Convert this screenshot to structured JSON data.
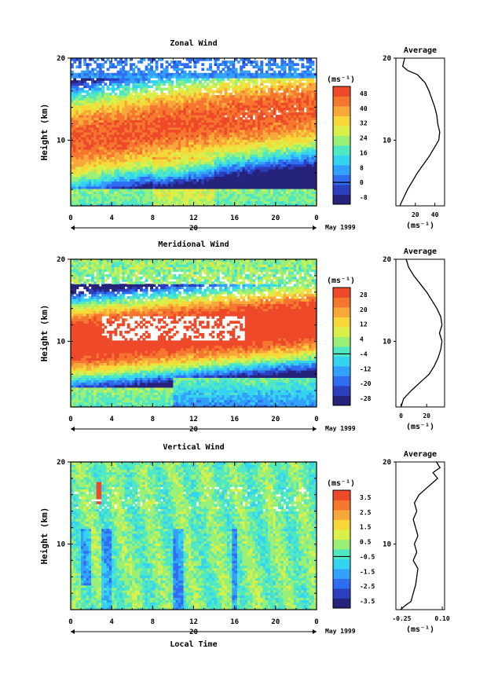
{
  "xaxis": {
    "ticks": [
      "0",
      "4",
      "8",
      "12",
      "16",
      "20",
      "0"
    ],
    "day_label": "20",
    "date_label": "May 1999",
    "label": "Local Time"
  },
  "ylabel": "Height (km)",
  "unit": "(ms⁻¹)",
  "avg_title": "Average",
  "colors": [
    "#26237a",
    "#2b3fbf",
    "#2f6df2",
    "#33a1fb",
    "#35d3f2",
    "#4fe8c2",
    "#9af076",
    "#d9f04a",
    "#f7d838",
    "#f8a83a",
    "#f5762f",
    "#ee4a2a"
  ],
  "chart_data": [
    {
      "type": "heatmap",
      "title": "Zonal Wind",
      "xlim": [
        0,
        24
      ],
      "ylim": [
        2,
        20
      ],
      "xticks": [
        0,
        4,
        8,
        12,
        16,
        20,
        24
      ],
      "yticks": [
        20,
        10
      ],
      "colorbar": {
        "levels": [
          "48",
          "40",
          "32",
          "24",
          "16",
          "8",
          "0",
          "-8"
        ],
        "zero_index": 6,
        "vmin": -8,
        "vmax": 48
      },
      "average": {
        "title": "Average",
        "xticks": [
          "20",
          "40"
        ],
        "xtick_values": [
          20,
          40
        ],
        "xlim": [
          0,
          50
        ],
        "yticks": [
          "20",
          "10"
        ],
        "profile": [
          [
            4,
            2
          ],
          [
            8,
            3
          ],
          [
            12,
            4
          ],
          [
            17,
            5
          ],
          [
            22,
            6
          ],
          [
            28,
            7
          ],
          [
            34,
            8
          ],
          [
            39,
            9
          ],
          [
            44,
            10
          ],
          [
            45,
            11
          ],
          [
            43,
            12
          ],
          [
            42,
            13
          ],
          [
            40,
            14
          ],
          [
            37,
            15
          ],
          [
            34,
            16
          ],
          [
            30,
            17
          ],
          [
            22,
            18
          ],
          [
            12,
            18.5
          ],
          [
            7,
            19
          ],
          [
            8,
            19.5
          ],
          [
            9,
            20
          ]
        ]
      }
    },
    {
      "type": "heatmap",
      "title": "Meridional Wind",
      "xlim": [
        0,
        24
      ],
      "ylim": [
        2,
        20
      ],
      "xticks": [
        0,
        4,
        8,
        12,
        16,
        20,
        24
      ],
      "yticks": [
        20,
        10
      ],
      "colorbar": {
        "levels": [
          "28",
          "20",
          "12",
          "4",
          "-4",
          "-12",
          "-20",
          "-28"
        ],
        "zero_index": 4,
        "vmin": -28,
        "vmax": 28
      },
      "average": {
        "title": "Average",
        "xticks": [
          "0",
          "20"
        ],
        "xtick_values": [
          0,
          20
        ],
        "xlim": [
          -4,
          34
        ],
        "yticks": [
          "20",
          "10"
        ],
        "profile": [
          [
            0,
            2
          ],
          [
            2,
            3
          ],
          [
            8,
            4
          ],
          [
            15,
            5
          ],
          [
            22,
            6
          ],
          [
            26,
            7
          ],
          [
            29,
            8
          ],
          [
            31,
            9
          ],
          [
            32,
            10
          ],
          [
            30,
            11
          ],
          [
            32,
            12
          ],
          [
            31,
            13
          ],
          [
            28,
            14
          ],
          [
            24,
            15
          ],
          [
            20,
            16
          ],
          [
            15,
            17
          ],
          [
            10,
            18
          ],
          [
            6,
            19
          ],
          [
            4,
            20
          ]
        ]
      }
    },
    {
      "type": "heatmap",
      "title": "Vertical Wind",
      "xlim": [
        0,
        24
      ],
      "ylim": [
        2,
        20
      ],
      "xticks": [
        0,
        4,
        8,
        12,
        16,
        20,
        24
      ],
      "yticks": [
        20,
        10
      ],
      "colorbar": {
        "levels": [
          "3.5",
          "2.5",
          "1.5",
          "0.5",
          "-0.5",
          "-1.5",
          "-2.5",
          "-3.5"
        ],
        "zero_index": 4,
        "vmin": -4,
        "vmax": 4
      },
      "average": {
        "title": "Average",
        "xticks": [
          "-0.25",
          "0.10"
        ],
        "xtick_values": [
          -0.25,
          0.1
        ],
        "xlim": [
          -0.3,
          0.12
        ],
        "yticks": [
          "20",
          "10"
        ],
        "profile": [
          [
            -0.26,
            2
          ],
          [
            -0.22,
            2.5
          ],
          [
            -0.17,
            3
          ],
          [
            -0.15,
            4
          ],
          [
            -0.13,
            5
          ],
          [
            -0.12,
            6
          ],
          [
            -0.11,
            7
          ],
          [
            -0.15,
            8
          ],
          [
            -0.12,
            9
          ],
          [
            -0.14,
            10
          ],
          [
            -0.11,
            11
          ],
          [
            -0.13,
            12
          ],
          [
            -0.15,
            13
          ],
          [
            -0.12,
            14
          ],
          [
            -0.14,
            15
          ],
          [
            -0.1,
            16
          ],
          [
            -0.02,
            17
          ],
          [
            0.06,
            18
          ],
          [
            0.02,
            18.7
          ],
          [
            0.08,
            19.3
          ],
          [
            0.05,
            20
          ]
        ]
      }
    }
  ]
}
